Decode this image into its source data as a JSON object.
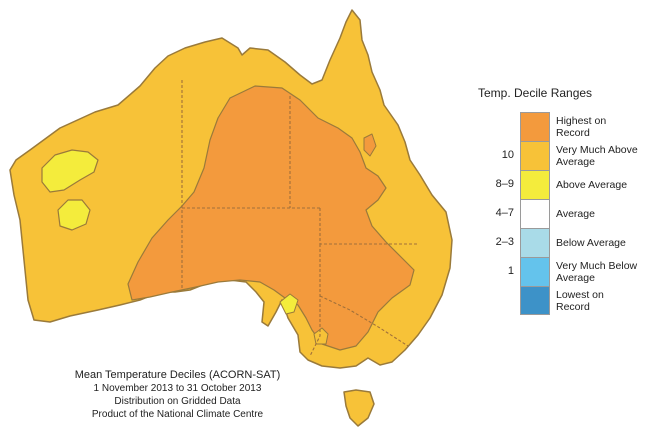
{
  "legend": {
    "title": "Temp. Decile Ranges",
    "items": [
      {
        "range": "",
        "label": "Highest on Record",
        "color": "#f39a3d"
      },
      {
        "range": "10",
        "label": "Very Much Above Average",
        "color": "#f7c238"
      },
      {
        "range": "8–9",
        "label": "Above Average",
        "color": "#f4ec3c"
      },
      {
        "range": "4–7",
        "label": "Average",
        "color": "#ffffff"
      },
      {
        "range": "2–3",
        "label": "Below Average",
        "color": "#a9dbe8"
      },
      {
        "range": "1",
        "label": "Very Much Below Average",
        "color": "#64c3ec"
      },
      {
        "range": "",
        "label": "Lowest on Record",
        "color": "#3d92c8"
      }
    ]
  },
  "caption": {
    "title": "Mean Temperature Deciles (ACORN-SAT)",
    "period": "1 November 2013 to 31 October 2013",
    "distribution": "Distribution on Gridded Data",
    "product": "Product of the National Climate Centre"
  },
  "map_colors": {
    "very_much_above": "#f7c238",
    "highest_on_record": "#f39a3d",
    "above_average": "#f4ec3c",
    "outline": "#9a7a3a",
    "state_border": "#a0703a"
  }
}
